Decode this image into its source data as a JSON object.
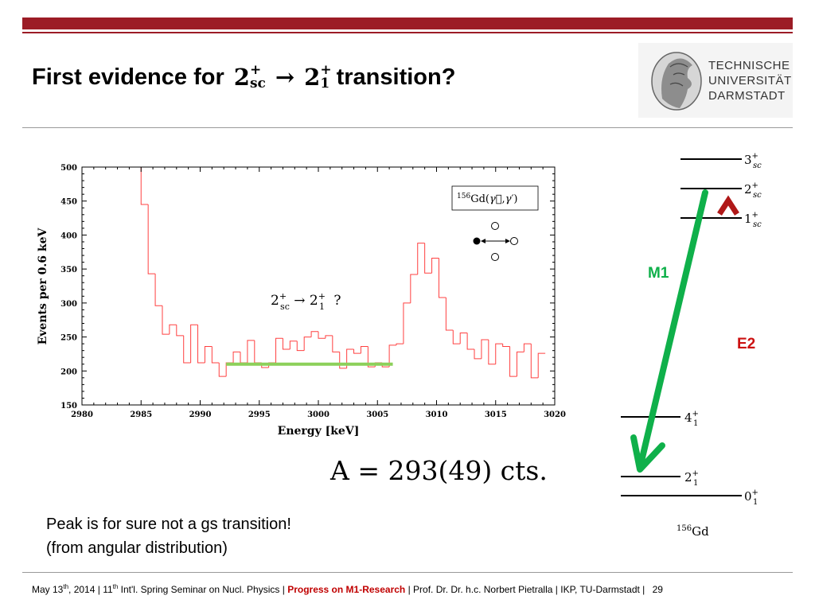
{
  "header": {
    "title_prefix": "First evidence for",
    "title_from": "2",
    "title_from_sup": "+",
    "title_from_sub": "sc",
    "title_arrow": "→",
    "title_to": "2",
    "title_to_sup": "+",
    "title_to_sub": "1",
    "title_suffix": "transition?"
  },
  "logo": {
    "line1": "TECHNISCHE",
    "line2": "UNIVERSITÄT",
    "line3": "DARMSTADT"
  },
  "chart_data": {
    "type": "histogram",
    "xlabel": "Energy [keV]",
    "ylabel": "Events per 0.6 keV",
    "xlim": [
      2980,
      3020
    ],
    "ylim": [
      150,
      500
    ],
    "xticks": [
      "2980",
      "2985",
      "2990",
      "2995",
      "3000",
      "3005",
      "3010",
      "3015",
      "3020"
    ],
    "yticks": [
      "150",
      "200",
      "250",
      "300",
      "350",
      "400",
      "450",
      "500"
    ],
    "bin_width": 0.6,
    "bin_start": 2984.4,
    "counts": [
      500,
      445,
      343,
      296,
      254,
      268,
      252,
      212,
      268,
      212,
      236,
      212,
      192,
      212,
      228,
      212,
      245,
      212,
      205,
      212,
      248,
      232,
      244,
      230,
      250,
      258,
      248,
      252,
      228,
      204,
      232,
      226,
      236,
      206,
      212,
      206,
      238,
      240,
      300,
      342,
      388,
      344,
      366,
      308,
      260,
      240,
      256,
      232,
      218,
      246,
      210,
      240,
      236,
      192,
      228,
      240,
      190,
      226
    ],
    "color": "#ff4040",
    "background_line": {
      "x": [
        2992.2,
        3006.3
      ],
      "y": 210,
      "color": "#8cd05a"
    },
    "legend_box": "156Gd(γ⃗,γ′)",
    "annotation": "2+sc → 2+1 ?",
    "grid": false
  },
  "amplitude": {
    "text": "A = 293(49) cts."
  },
  "note": {
    "line1": "Peak is for sure not a gs transition!",
    "line2": "(from angular distribution)"
  },
  "level_scheme": {
    "nucleus": "156Gd",
    "levels": [
      "3+sc",
      "2+sc",
      "1+sc",
      "4+1",
      "2+1",
      "0+1"
    ],
    "m1_label": "M1",
    "e2_label": "E2",
    "m1_color": "#0fb04a",
    "e2_color": "#cc1111"
  },
  "footer": {
    "date": "May 13th, 2014",
    "event": "11th Int'l. Spring Seminar on Nucl. Physics",
    "highlight": "Progress on M1-Research",
    "author": "Prof. Dr. Dr. h.c. Norbert Pietralla",
    "institute": "IKP, TU-Darmstadt",
    "page": "29"
  }
}
